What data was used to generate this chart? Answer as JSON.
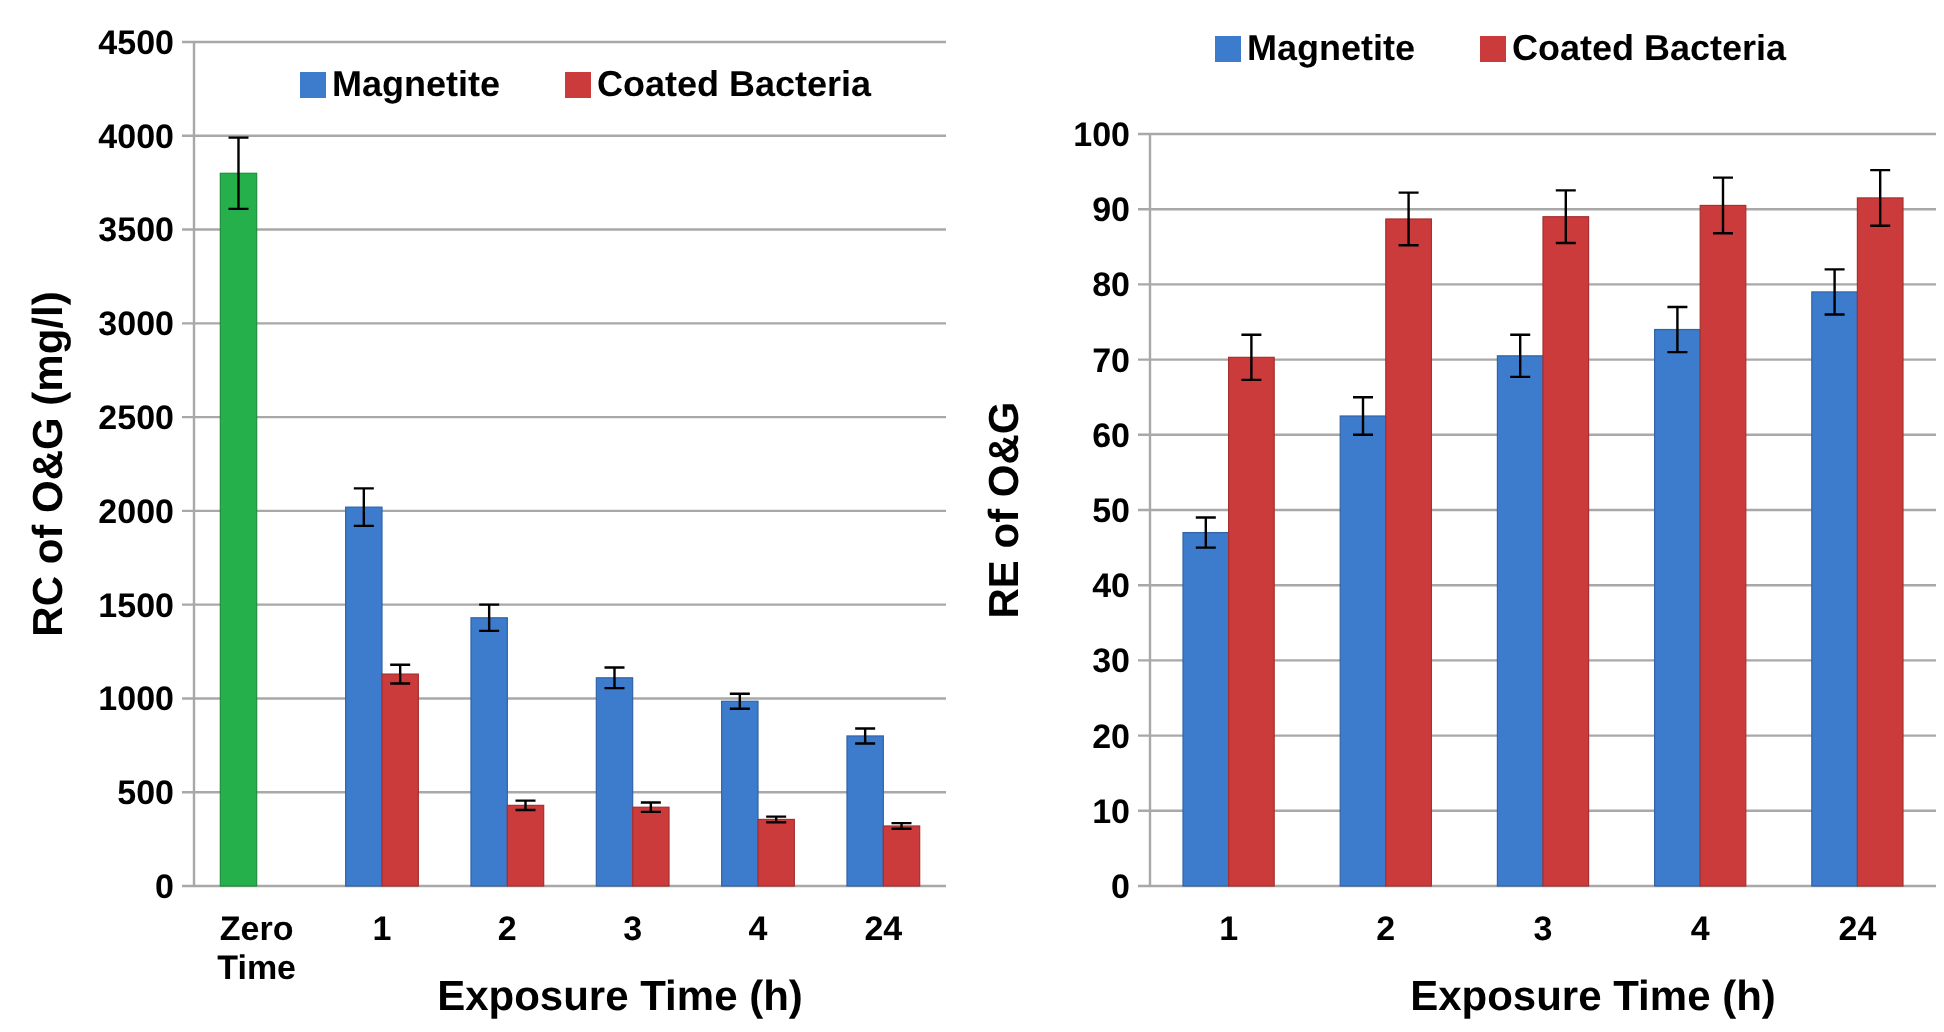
{
  "chart_data": [
    {
      "type": "bar",
      "xlabel": "Exposure Time (h)",
      "ylabel": "RC of O&G (mg/l)",
      "categories": [
        "Zero Time",
        "1",
        "2",
        "3",
        "4",
        "24"
      ],
      "series": [
        {
          "name": "Magnetite",
          "color": "#3d7bcc",
          "colors": [
            "#25b04b",
            "#3d7bcc",
            "#3d7bcc",
            "#3d7bcc",
            "#3d7bcc",
            "#3d7bcc"
          ],
          "values": [
            3800,
            2020,
            1430,
            1110,
            985,
            800
          ],
          "errors": [
            190,
            100,
            70,
            55,
            40,
            40
          ]
        },
        {
          "name": "Coated Bacteria",
          "color": "#cc3b3b",
          "values": [
            null,
            1130,
            430,
            420,
            355,
            320
          ],
          "errors": [
            null,
            50,
            25,
            25,
            15,
            15
          ]
        }
      ],
      "ylim": [
        0,
        4500
      ],
      "yticks": [
        0,
        500,
        1000,
        1500,
        2000,
        2500,
        3000,
        3500,
        4000,
        4500
      ],
      "grid": "y",
      "legend": "top right"
    },
    {
      "type": "bar",
      "xlabel": "Exposure Time (h)",
      "ylabel": "RE of O&G",
      "categories": [
        "1",
        "2",
        "3",
        "4",
        "24"
      ],
      "series": [
        {
          "name": "Magnetite",
          "color": "#3d7bcc",
          "values": [
            47,
            62.5,
            70.5,
            74,
            79
          ],
          "errors": [
            2,
            2.5,
            2.8,
            3,
            3
          ]
        },
        {
          "name": "Coated Bacteria",
          "color": "#cc3b3b",
          "values": [
            70.3,
            88.7,
            89,
            90.5,
            91.5
          ],
          "errors": [
            3,
            3.5,
            3.5,
            3.7,
            3.7
          ]
        }
      ],
      "ylim": [
        0,
        100
      ],
      "yticks": [
        0,
        10,
        20,
        30,
        40,
        50,
        60,
        70,
        80,
        90,
        100
      ],
      "grid": "y",
      "legend": "top"
    }
  ]
}
